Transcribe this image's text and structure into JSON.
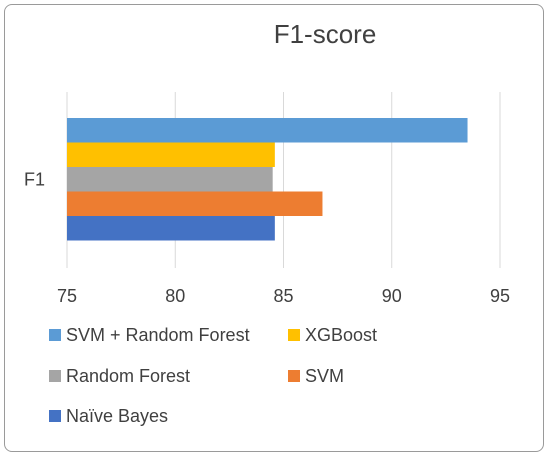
{
  "chart_data": {
    "type": "bar",
    "orientation": "horizontal",
    "title": "F1-score",
    "categories": [
      "F1"
    ],
    "series": [
      {
        "name": "SVM + Random Forest",
        "values": [
          93.5
        ],
        "color": "#5b9bd5"
      },
      {
        "name": "XGBoost",
        "values": [
          84.6
        ],
        "color": "#ffc000"
      },
      {
        "name": "Random Forest",
        "values": [
          84.5
        ],
        "color": "#a5a5a5"
      },
      {
        "name": "SVM",
        "values": [
          86.8
        ],
        "color": "#ed7d31"
      },
      {
        "name": "Naïve Bayes",
        "values": [
          84.6
        ],
        "color": "#4472c4"
      }
    ],
    "xlim": [
      75,
      95
    ],
    "xticks": [
      "75",
      "80",
      "85",
      "90",
      "95"
    ],
    "grid": true,
    "legend_position": "bottom"
  }
}
